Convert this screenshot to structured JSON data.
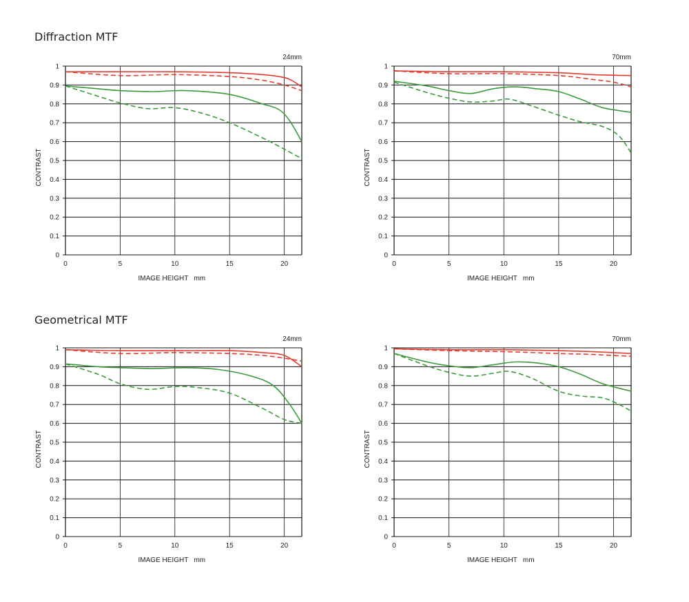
{
  "sections": {
    "diffraction": "Diffraction MTF",
    "geometrical": "Geometrical MTF"
  },
  "colors": {
    "red": "#e23b2e",
    "green": "#3a9a3a",
    "grid": "#111111"
  },
  "chart_data": [
    {
      "type": "line",
      "section": "Diffraction MTF",
      "focal": "24mm",
      "xlabel": "IMAGE HEIGHT   mm",
      "ylabel": "CONTRAST",
      "xlim": [
        0,
        21.6
      ],
      "ylim": [
        0,
        1
      ],
      "xticks": [
        0,
        5,
        10,
        15,
        20
      ],
      "yticks": [
        0,
        0.1,
        0.2,
        0.3,
        0.4,
        0.5,
        0.6,
        0.7,
        0.8,
        0.9,
        1
      ],
      "ytick_labels": [
        "0",
        "0.1",
        "0.2",
        "0.3",
        "0.4",
        "0.5",
        "0.6",
        "0.7",
        "0.8",
        "0.9",
        "1"
      ],
      "grid": true,
      "series": [
        {
          "color": "red",
          "style": "solid",
          "x": [
            0,
            5,
            10,
            15,
            18,
            19.5,
            20.5,
            21.6
          ],
          "y": [
            0.97,
            0.97,
            0.97,
            0.965,
            0.955,
            0.945,
            0.93,
            0.89
          ]
        },
        {
          "color": "red",
          "style": "dashed",
          "x": [
            0,
            5,
            10,
            15,
            18,
            20,
            21.6
          ],
          "y": [
            0.97,
            0.95,
            0.955,
            0.945,
            0.925,
            0.9,
            0.87
          ]
        },
        {
          "color": "green",
          "style": "solid",
          "x": [
            0,
            3,
            5,
            8,
            11,
            15,
            18,
            19.5,
            20.5,
            21.6
          ],
          "y": [
            0.895,
            0.88,
            0.87,
            0.865,
            0.87,
            0.85,
            0.8,
            0.77,
            0.71,
            0.6
          ]
        },
        {
          "color": "green",
          "style": "dashed",
          "x": [
            0,
            3,
            5,
            7.5,
            10,
            12.5,
            15,
            18,
            20,
            21.6
          ],
          "y": [
            0.895,
            0.84,
            0.805,
            0.775,
            0.78,
            0.75,
            0.7,
            0.62,
            0.56,
            0.51
          ]
        }
      ]
    },
    {
      "type": "line",
      "section": "Diffraction MTF",
      "focal": "70mm",
      "xlabel": "IMAGE HEIGHT   mm",
      "ylabel": "CONTRAST",
      "xlim": [
        0,
        21.6
      ],
      "ylim": [
        0,
        1
      ],
      "xticks": [
        0,
        5,
        10,
        15,
        20
      ],
      "yticks": [
        0,
        0.1,
        0.2,
        0.3,
        0.4,
        0.5,
        0.6,
        0.7,
        0.8,
        0.9,
        1
      ],
      "ytick_labels": [
        "0",
        "0.1",
        "0.2",
        "0.3",
        "0.4",
        "0.5",
        "0.6",
        "0.7",
        "0.8",
        "0.9",
        "1"
      ],
      "grid": true,
      "series": [
        {
          "color": "red",
          "style": "solid",
          "x": [
            0,
            5,
            10,
            15,
            18,
            21.6
          ],
          "y": [
            0.975,
            0.97,
            0.97,
            0.965,
            0.955,
            0.95
          ]
        },
        {
          "color": "red",
          "style": "dashed",
          "x": [
            0,
            5,
            10,
            15,
            18,
            20,
            21.6
          ],
          "y": [
            0.975,
            0.96,
            0.96,
            0.95,
            0.93,
            0.915,
            0.89
          ]
        },
        {
          "color": "green",
          "style": "solid",
          "x": [
            0,
            3,
            5,
            7,
            9,
            11,
            13,
            15,
            17,
            19,
            21.6
          ],
          "y": [
            0.92,
            0.895,
            0.87,
            0.855,
            0.88,
            0.89,
            0.88,
            0.865,
            0.825,
            0.78,
            0.755
          ]
        },
        {
          "color": "green",
          "style": "dashed",
          "x": [
            0,
            3,
            5,
            7,
            9,
            10.5,
            12.5,
            15,
            17,
            19,
            20.5,
            21.6
          ],
          "y": [
            0.915,
            0.86,
            0.83,
            0.81,
            0.815,
            0.825,
            0.79,
            0.74,
            0.705,
            0.68,
            0.63,
            0.54
          ]
        }
      ]
    },
    {
      "type": "line",
      "section": "Geometrical MTF",
      "focal": "24mm",
      "xlabel": "IMAGE HEIGHT   mm",
      "ylabel": "CONTRAST",
      "xlim": [
        0,
        21.6
      ],
      "ylim": [
        0,
        1
      ],
      "xticks": [
        0,
        5,
        10,
        15,
        20
      ],
      "yticks": [
        0,
        0.1,
        0.2,
        0.3,
        0.4,
        0.5,
        0.6,
        0.7,
        0.8,
        0.9,
        1
      ],
      "ytick_labels": [
        "0",
        "0.1",
        "0.2",
        "0.3",
        "0.4",
        "0.5",
        "0.6",
        "0.7",
        "0.8",
        "0.9",
        "1"
      ],
      "grid": true,
      "series": [
        {
          "color": "red",
          "style": "solid",
          "x": [
            0,
            5,
            10,
            15,
            18,
            20,
            21.6
          ],
          "y": [
            0.99,
            0.985,
            0.985,
            0.985,
            0.975,
            0.96,
            0.9
          ]
        },
        {
          "color": "red",
          "style": "dashed",
          "x": [
            0,
            5,
            10,
            15,
            18,
            20,
            21.6
          ],
          "y": [
            0.99,
            0.97,
            0.975,
            0.97,
            0.96,
            0.945,
            0.93
          ]
        },
        {
          "color": "green",
          "style": "solid",
          "x": [
            0,
            3,
            5,
            8,
            11,
            14,
            17,
            19,
            20.5,
            21.6
          ],
          "y": [
            0.915,
            0.9,
            0.895,
            0.89,
            0.895,
            0.885,
            0.85,
            0.8,
            0.7,
            0.6
          ]
        },
        {
          "color": "green",
          "style": "dashed",
          "x": [
            0,
            3,
            5,
            7.5,
            10,
            12,
            15,
            18,
            20,
            21.6
          ],
          "y": [
            0.915,
            0.86,
            0.81,
            0.78,
            0.795,
            0.79,
            0.76,
            0.68,
            0.62,
            0.6
          ]
        }
      ]
    },
    {
      "type": "line",
      "section": "Geometrical MTF",
      "focal": "70mm",
      "xlabel": "IMAGE HEIGHT   mm",
      "ylabel": "CONTRAST",
      "xlim": [
        0,
        21.6
      ],
      "ylim": [
        0,
        1
      ],
      "xticks": [
        0,
        5,
        10,
        15,
        20
      ],
      "yticks": [
        0,
        0.1,
        0.2,
        0.3,
        0.4,
        0.5,
        0.6,
        0.7,
        0.8,
        0.9,
        1
      ],
      "ytick_labels": [
        "0",
        "0.1",
        "0.2",
        "0.3",
        "0.4",
        "0.5",
        "0.6",
        "0.7",
        "0.8",
        "0.9",
        "1"
      ],
      "grid": true,
      "series": [
        {
          "color": "red",
          "style": "solid",
          "x": [
            0,
            5,
            10,
            15,
            18,
            21.6
          ],
          "y": [
            0.995,
            0.99,
            0.99,
            0.985,
            0.98,
            0.97
          ]
        },
        {
          "color": "red",
          "style": "dashed",
          "x": [
            0,
            5,
            10,
            15,
            18,
            21.6
          ],
          "y": [
            0.995,
            0.985,
            0.98,
            0.97,
            0.965,
            0.955
          ]
        },
        {
          "color": "green",
          "style": "solid",
          "x": [
            0,
            3,
            5,
            7,
            9,
            11,
            13,
            15,
            17,
            19,
            21.6
          ],
          "y": [
            0.97,
            0.925,
            0.905,
            0.895,
            0.91,
            0.925,
            0.92,
            0.9,
            0.86,
            0.81,
            0.77
          ]
        },
        {
          "color": "green",
          "style": "dashed",
          "x": [
            0,
            3,
            5,
            7,
            9,
            10.5,
            12.5,
            15,
            17,
            19,
            20.5,
            21.6
          ],
          "y": [
            0.97,
            0.905,
            0.87,
            0.85,
            0.865,
            0.875,
            0.84,
            0.77,
            0.745,
            0.735,
            0.7,
            0.665
          ]
        }
      ]
    }
  ]
}
